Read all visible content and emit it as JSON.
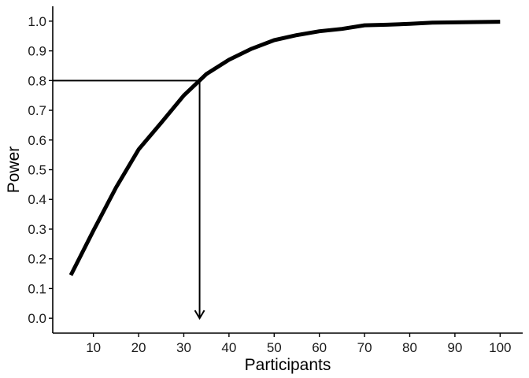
{
  "chart_data": {
    "type": "line",
    "title": "",
    "xlabel": "Participants",
    "ylabel": "Power",
    "xlim": [
      1,
      105
    ],
    "ylim": [
      -0.05,
      1.05
    ],
    "x_ticks": [
      10,
      20,
      30,
      40,
      50,
      60,
      70,
      80,
      90,
      100
    ],
    "y_ticks": [
      "0.0",
      "0.1",
      "0.2",
      "0.3",
      "0.4",
      "0.5",
      "0.6",
      "0.7",
      "0.8",
      "0.9",
      "1.0"
    ],
    "grid": false,
    "series": [
      {
        "x": [
          5,
          10,
          15,
          20,
          25,
          30,
          35,
          40,
          45,
          50,
          55,
          60,
          65,
          70,
          75,
          80,
          85,
          90,
          95,
          100
        ],
        "y": [
          0.145,
          0.295,
          0.44,
          0.568,
          0.658,
          0.75,
          0.822,
          0.87,
          0.907,
          0.936,
          0.953,
          0.966,
          0.974,
          0.986,
          0.988,
          0.991,
          0.995,
          0.996,
          0.997,
          0.998
        ]
      }
    ],
    "annotation": {
      "power_threshold": 0.8,
      "participants_required": 33.5
    },
    "colors": {
      "line": "#000000",
      "axis": "#000000",
      "text": "#1a1a1a"
    }
  }
}
